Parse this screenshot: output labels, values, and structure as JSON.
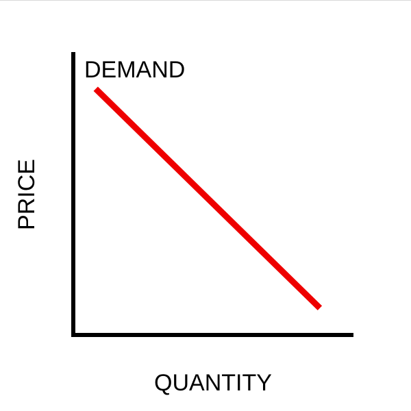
{
  "chart_data": {
    "type": "line",
    "title": "",
    "xlabel": "QUANTITY",
    "ylabel": "PRICE",
    "xlim": [
      0,
      10
    ],
    "ylim": [
      0,
      10
    ],
    "grid": false,
    "series": [
      {
        "name": "DEMAND",
        "color": "#ee0000",
        "x": [
          0.8,
          8.8
        ],
        "y": [
          8.7,
          0.95
        ]
      }
    ]
  }
}
